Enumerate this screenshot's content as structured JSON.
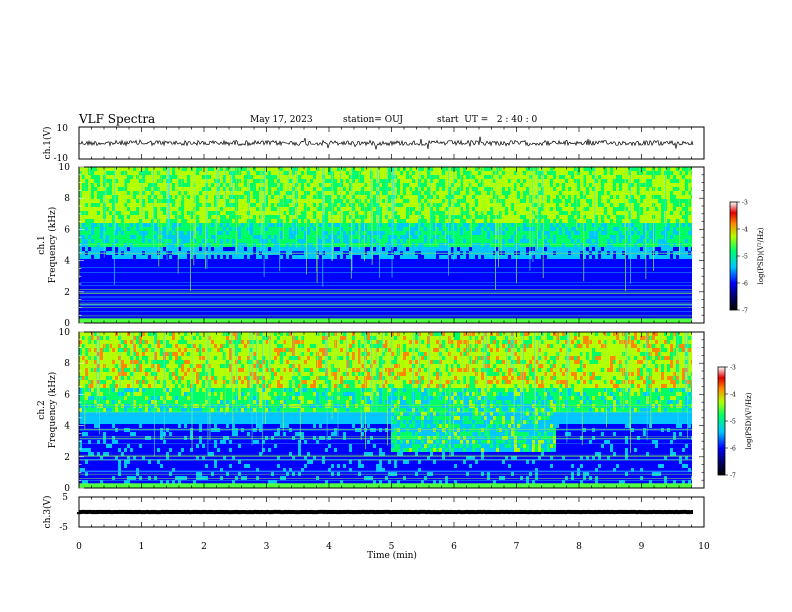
{
  "header": {
    "title": "VLF Spectra",
    "date": "May 17, 2023",
    "station": "station= OUJ",
    "start": "start  UT =   2 : 40 : 0"
  },
  "chart_data": {
    "type": "heatmap",
    "xlabel": "Time  (min)",
    "xlim": [
      0,
      10
    ],
    "xticks": [
      "0",
      "1",
      "2",
      "3",
      "4",
      "5",
      "6",
      "7",
      "8",
      "9",
      "10"
    ],
    "data_end_min": 9.83,
    "panels": [
      {
        "id": "ch1-waveform",
        "type": "line",
        "ylabel": "ch.1(V)",
        "ylim": [
          -10,
          10
        ],
        "yticks": [
          "10",
          "-10"
        ],
        "trace_level": 0
      },
      {
        "id": "ch1-spectrogram",
        "type": "heatmap",
        "ylabel_top": "ch.1",
        "ylabel": "Frequency  (kHz)",
        "ylim": [
          0,
          10
        ],
        "yticks": [
          "0",
          "2",
          "4",
          "6",
          "8",
          "10"
        ],
        "colorbar": {
          "label": "log(PSD)(V²/Hz)",
          "range": [
            -7,
            -3
          ],
          "ticks": [
            "-3",
            "-4",
            "-5",
            "-6",
            "-7"
          ]
        }
      },
      {
        "id": "ch2-spectrogram",
        "type": "heatmap",
        "ylabel_top": "ch.2",
        "ylabel": "Frequency  (kHz)",
        "ylim": [
          0,
          10
        ],
        "yticks": [
          "0",
          "2",
          "4",
          "6",
          "8",
          "10"
        ],
        "colorbar": {
          "label": "log(PSD)(V²/Hz)",
          "range": [
            -7,
            -3
          ],
          "ticks": [
            "-3",
            "-4",
            "-5",
            "-6",
            "-7"
          ]
        },
        "enhanced_interval_min": [
          4.95,
          7.6
        ],
        "enhanced_band_khz": [
          2.5,
          6
        ]
      },
      {
        "id": "ch3-waveform",
        "type": "line",
        "ylabel": "ch.3(V)",
        "ylim": [
          -5,
          5
        ],
        "yticks": [
          "5",
          "-5"
        ],
        "trace_level": 0
      }
    ]
  }
}
